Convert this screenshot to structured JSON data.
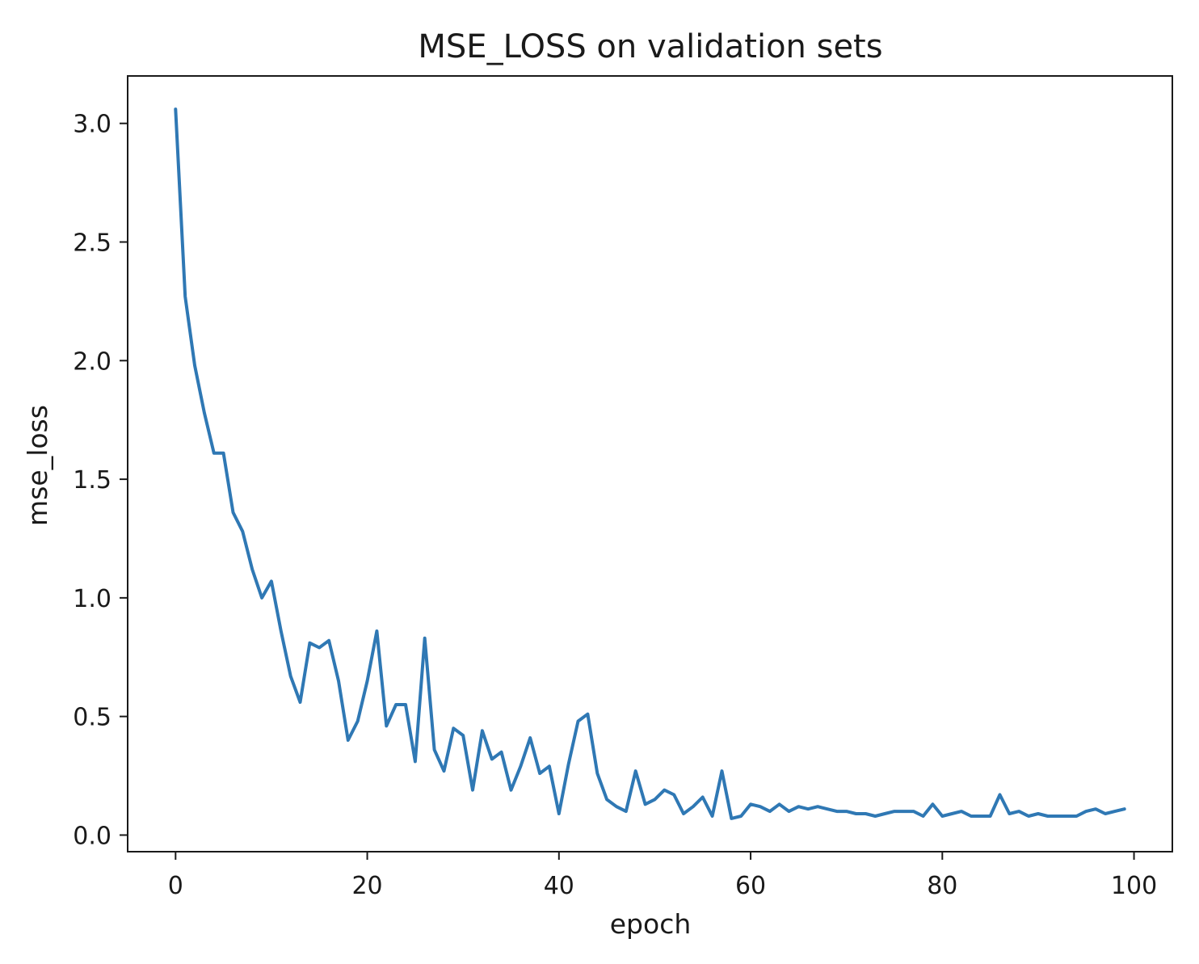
{
  "chart_data": {
    "type": "line",
    "title": "MSE_LOSS on validation sets",
    "xlabel": "epoch",
    "ylabel": "mse_loss",
    "xlim": [
      -5,
      104
    ],
    "ylim": [
      -0.07,
      3.2
    ],
    "xticks": [
      0,
      20,
      40,
      60,
      80,
      100
    ],
    "xtick_labels": [
      "0",
      "20",
      "40",
      "60",
      "80",
      "100"
    ],
    "yticks": [
      0.0,
      0.5,
      1.0,
      1.5,
      2.0,
      2.5,
      3.0
    ],
    "ytick_labels": [
      "0.0",
      "0.5",
      "1.0",
      "1.5",
      "2.0",
      "2.5",
      "3.0"
    ],
    "grid": false,
    "line_color": "#2f78b4",
    "series": [
      {
        "name": "mse_loss",
        "x": [
          0,
          1,
          2,
          3,
          4,
          5,
          6,
          7,
          8,
          9,
          10,
          11,
          12,
          13,
          14,
          15,
          16,
          17,
          18,
          19,
          20,
          21,
          22,
          23,
          24,
          25,
          26,
          27,
          28,
          29,
          30,
          31,
          32,
          33,
          34,
          35,
          36,
          37,
          38,
          39,
          40,
          41,
          42,
          43,
          44,
          45,
          46,
          47,
          48,
          49,
          50,
          51,
          52,
          53,
          54,
          55,
          56,
          57,
          58,
          59,
          60,
          61,
          62,
          63,
          64,
          65,
          66,
          67,
          68,
          69,
          70,
          71,
          72,
          73,
          74,
          75,
          76,
          77,
          78,
          79,
          80,
          81,
          82,
          83,
          84,
          85,
          86,
          87,
          88,
          89,
          90,
          91,
          92,
          93,
          94,
          95,
          96,
          97,
          98,
          99
        ],
        "values": [
          3.06,
          2.27,
          1.98,
          1.78,
          1.61,
          1.61,
          1.36,
          1.28,
          1.12,
          1.0,
          1.07,
          0.86,
          0.67,
          0.56,
          0.81,
          0.79,
          0.82,
          0.65,
          0.4,
          0.48,
          0.65,
          0.86,
          0.46,
          0.55,
          0.55,
          0.31,
          0.83,
          0.36,
          0.27,
          0.45,
          0.42,
          0.19,
          0.44,
          0.32,
          0.35,
          0.19,
          0.29,
          0.41,
          0.26,
          0.29,
          0.09,
          0.3,
          0.48,
          0.51,
          0.26,
          0.15,
          0.12,
          0.1,
          0.27,
          0.13,
          0.15,
          0.19,
          0.17,
          0.09,
          0.12,
          0.16,
          0.08,
          0.27,
          0.07,
          0.08,
          0.13,
          0.12,
          0.1,
          0.13,
          0.1,
          0.12,
          0.11,
          0.12,
          0.11,
          0.1,
          0.1,
          0.09,
          0.09,
          0.08,
          0.09,
          0.1,
          0.1,
          0.1,
          0.08,
          0.13,
          0.08,
          0.09,
          0.1,
          0.08,
          0.08,
          0.08,
          0.17,
          0.09,
          0.1,
          0.08,
          0.09,
          0.08,
          0.08,
          0.08,
          0.08,
          0.1,
          0.11,
          0.09,
          0.1,
          0.11
        ]
      }
    ]
  }
}
